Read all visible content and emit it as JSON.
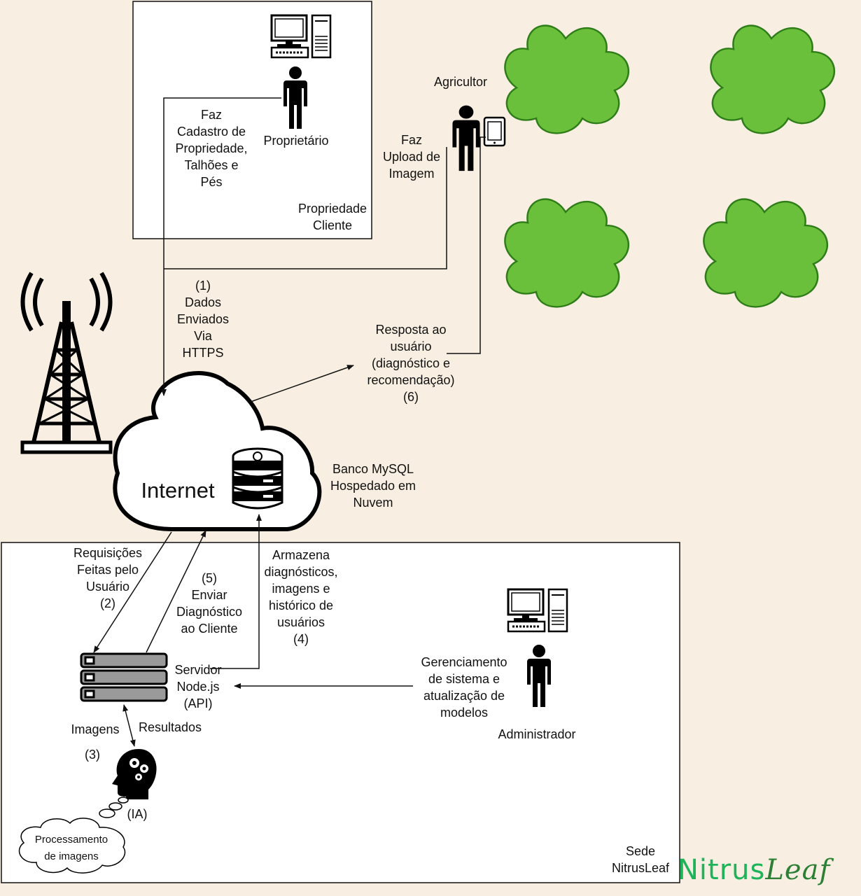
{
  "diagram": {
    "property_box_label": "Propriedade\nCliente",
    "owner_label": "Proprietário",
    "owner_action": "Faz\nCadastro de\nPropriedade,\nTalhões e\nPés",
    "farmer_label": "Agricultor",
    "farmer_action": "Faz\nUpload de\nImagem",
    "step1": "(1)\nDados\nEnviados\nVia\nHTTPS",
    "response": "Resposta ao\nusuário\n(diagnóstico e\nrecomendação)\n(6)",
    "internet_label": "Internet",
    "database_label": "Banco MySQL\nHospedado em\nNuvem",
    "step2": "Requisições\nFeitas pelo\nUsuário\n(2)",
    "step5": "(5)\nEnviar\nDiagnóstico\nao Cliente",
    "step4": "Armazena\ndiagnósticos,\nimagens e\nhistórico de\nusuários\n(4)",
    "server_label": "Servidor\nNode.js\n(API)",
    "management": "Gerenciamento\nde sistema e\natualização de\nmodelos",
    "admin_label": "Administrador",
    "images_label": "Imagens",
    "step3": "(3)",
    "results_label": "Resultados",
    "ai_label": "(IA)",
    "processing_label": "Processamento\nde imagens",
    "hq_label": "Sede\nNitrusLeaf",
    "logo_part1": "Nitrus",
    "logo_part2": "Leaf"
  },
  "colors": {
    "background": "#f8efe2",
    "tree_fill": "#6abf3b",
    "logo_green": "#1fb35a"
  },
  "icons": [
    "computer-icon",
    "person-icon",
    "tablet-icon",
    "tower-icon",
    "database-icon",
    "server-icon",
    "ai-head-icon",
    "tree-icon"
  ]
}
